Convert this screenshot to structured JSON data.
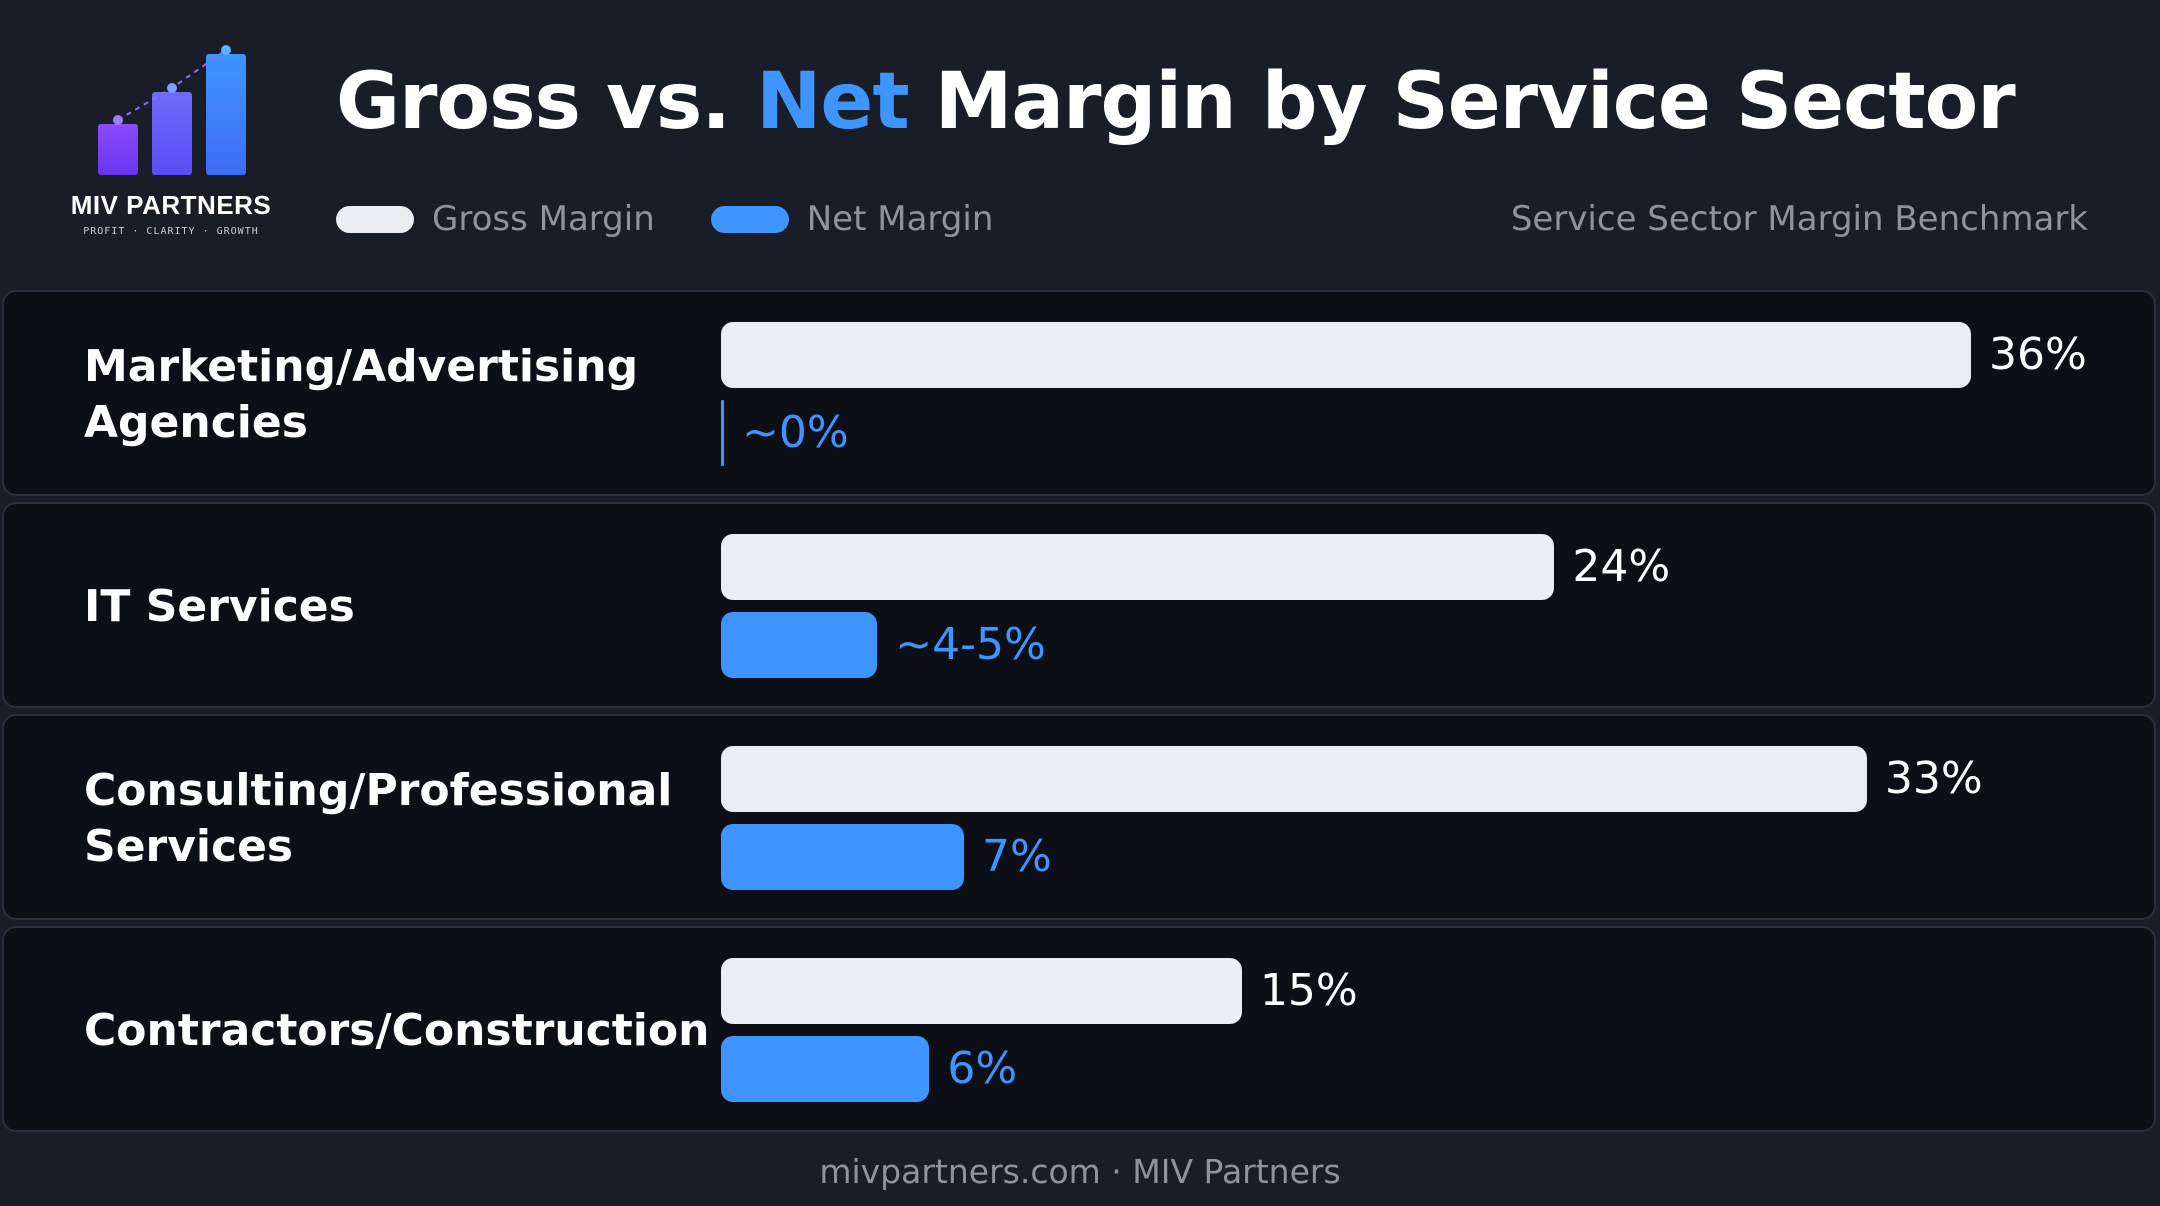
{
  "logo": {
    "name": "MIV PARTNERS",
    "tagline": "PROFIT · CLARITY · GROWTH",
    "colors": [
      "#7b3cf5",
      "#5a5cf8",
      "#3f8cff"
    ]
  },
  "header": {
    "title_part1": "Gross vs. ",
    "title_accent": "Net",
    "title_part2": " Margin by Service Sector",
    "benchmark_label": "Service Sector Margin Benchmark"
  },
  "legend": [
    {
      "label": "Gross Margin",
      "color": "#ececf3"
    },
    {
      "label": "Net Margin",
      "color": "#3f95ff"
    }
  ],
  "chart_data": {
    "type": "bar",
    "orientation": "horizontal",
    "categories": [
      "Marketing/Advertising Agencies",
      "IT Services",
      "Consulting/Professional Services",
      "Contractors/Construction"
    ],
    "series": [
      {
        "name": "Gross Margin",
        "values": [
          36,
          24,
          33,
          15
        ],
        "labels": [
          "36%",
          "24%",
          "33%",
          "15%"
        ],
        "color": "#ececf3"
      },
      {
        "name": "Net Margin",
        "values": [
          0,
          4.5,
          7,
          6
        ],
        "labels": [
          "~0%",
          "~4-5%",
          "7%",
          "6%"
        ],
        "color": "#3f95ff"
      }
    ],
    "xlim": [
      0,
      36
    ],
    "grid": false,
    "legend_position": "top-left"
  },
  "footer": {
    "text": "mivpartners.com · MIV Partners"
  }
}
